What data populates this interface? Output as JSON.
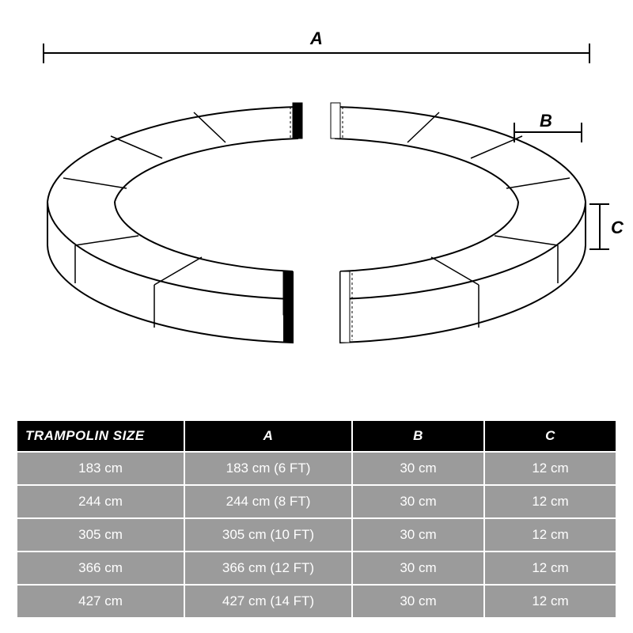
{
  "diagram": {
    "labels": {
      "A": "A",
      "B": "B",
      "C": "C"
    },
    "stroke": "#000000",
    "fill": "#ffffff",
    "background": "#ffffff",
    "styling": {
      "label_font_size": 22,
      "label_font_weight": 900,
      "label_font_style": "italic",
      "line_width": 2
    },
    "geometry_note": "Two-piece circular trampoline safety pad (ring with gap at front and back), overall diameter A, pad width B, pad thickness C"
  },
  "table": {
    "header_bg": "#000000",
    "header_fg": "#ffffff",
    "row_bg": "#9b9b9b",
    "row_fg": "#ffffff",
    "columns": [
      "TRAMPOLIN SIZE",
      "A",
      "B",
      "C"
    ],
    "rows": [
      [
        "183 cm",
        "183 cm (6 FT)",
        "30 cm",
        "12 cm"
      ],
      [
        "244 cm",
        "244 cm (8 FT)",
        "30 cm",
        "12 cm"
      ],
      [
        "305 cm",
        "305 cm (10 FT)",
        "30 cm",
        "12 cm"
      ],
      [
        "366 cm",
        "366 cm (12 FT)",
        "30 cm",
        "12 cm"
      ],
      [
        "427 cm",
        "427 cm (14 FT)",
        "30 cm",
        "12 cm"
      ]
    ],
    "col_widths_pct": [
      28,
      28,
      22,
      22
    ]
  }
}
